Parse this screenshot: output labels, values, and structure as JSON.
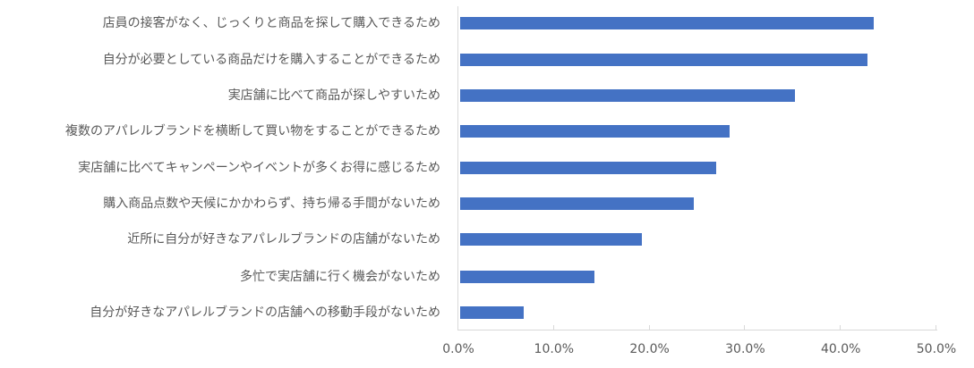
{
  "chart_data": {
    "type": "bar",
    "orientation": "horizontal",
    "title": "",
    "xlabel": "",
    "ylabel": "",
    "categories": [
      "店員の接客がなく、じっくりと商品を探して購入できるため",
      "自分が必要としている商品だけを購入することができるため",
      "実店舗に比べて商品が探しやすいため",
      "複数のアパレルブランドを横断して買い物をすることができるため",
      "実店舗に比べてキャンペーンやイベントが多くお得に感じるため",
      "購入商品点数や天候にかかわらず、持ち帰る手間がないため",
      "近所に自分が好きなアパレルブランドの店舗がないため",
      "多忙で実店舗に行く機会がないため",
      "自分が好きなアパレルブランドの店舗への移動手段がないため"
    ],
    "values": [
      43.4,
      42.8,
      35.2,
      28.4,
      27.0,
      24.6,
      19.2,
      14.2,
      6.8
    ],
    "unit": "%",
    "xlim": [
      0,
      50
    ],
    "xticks": [
      "0.0%",
      "10.0%",
      "20.0%",
      "30.0%",
      "40.0%",
      "50.0%"
    ],
    "grid": false,
    "legend": null,
    "bar_color": "#4472C4"
  }
}
